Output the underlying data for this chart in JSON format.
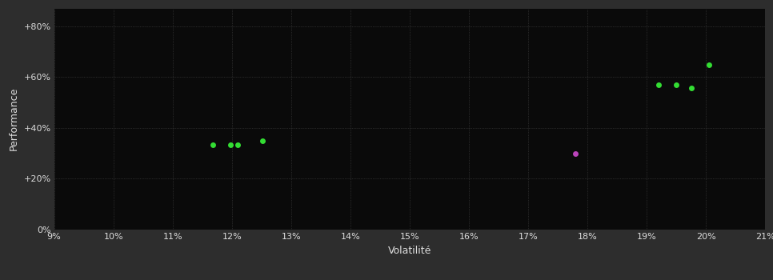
{
  "background_color": "#2d2d2d",
  "plot_bg_color": "#0a0a0a",
  "grid_color": "#444444",
  "text_color": "#dddddd",
  "xlabel": "Volatilité",
  "ylabel": "Performance",
  "xlim": [
    0.09,
    0.21
  ],
  "ylim": [
    0.0,
    0.87
  ],
  "xticks": [
    0.09,
    0.1,
    0.11,
    0.12,
    0.13,
    0.14,
    0.15,
    0.16,
    0.17,
    0.18,
    0.19,
    0.2,
    0.21
  ],
  "yticks": [
    0.0,
    0.2,
    0.4,
    0.6,
    0.8
  ],
  "ytick_labels": [
    "0%",
    "+20%",
    "+40%",
    "+60%",
    "+80%"
  ],
  "green_points": [
    [
      0.1168,
      0.333
    ],
    [
      0.1198,
      0.333
    ],
    [
      0.121,
      0.333
    ],
    [
      0.1252,
      0.35
    ],
    [
      0.192,
      0.57
    ],
    [
      0.195,
      0.57
    ],
    [
      0.1975,
      0.558
    ],
    [
      0.2005,
      0.648
    ]
  ],
  "purple_points": [
    [
      0.178,
      0.3
    ]
  ],
  "green_color": "#33dd33",
  "purple_color": "#bb44bb",
  "point_size": 25
}
